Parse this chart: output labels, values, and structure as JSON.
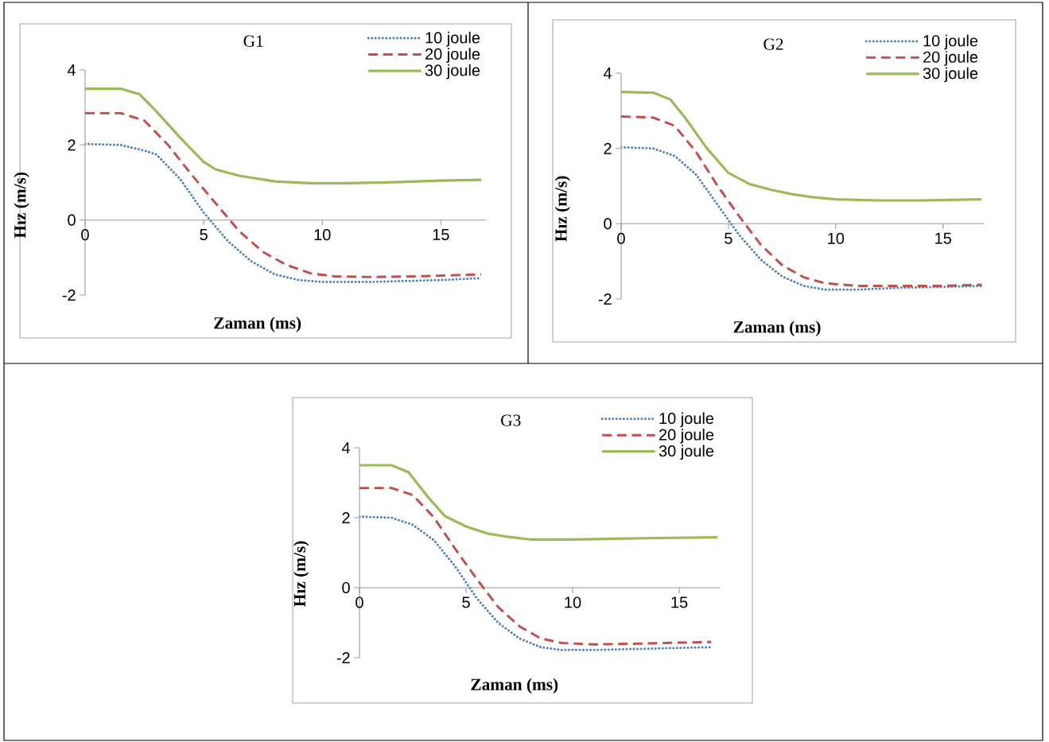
{
  "chart_data": [
    {
      "type": "line",
      "title": "G1",
      "xlabel": "Zaman (ms)",
      "ylabel": "Hız (m/s)",
      "xlim": [
        0,
        16.9
      ],
      "ylim": [
        -2,
        4
      ],
      "xticks": [
        0,
        5,
        10,
        15
      ],
      "yticks": [
        -2,
        0,
        2,
        4
      ],
      "legend": "top right",
      "grid": false,
      "series": [
        {
          "name": "10 joule",
          "color": "#4f81bd",
          "line_style": "dotted",
          "x": [
            0,
            1.5,
            2.5,
            3,
            4,
            5,
            6,
            7,
            8,
            9,
            10,
            12,
            15,
            16.7
          ],
          "values": [
            2.03,
            2.0,
            1.85,
            1.75,
            1.1,
            0.2,
            -0.55,
            -1.1,
            -1.45,
            -1.6,
            -1.65,
            -1.65,
            -1.6,
            -1.55
          ]
        },
        {
          "name": "20 joule",
          "color": "#c0504d",
          "line_style": "dashed",
          "x": [
            0,
            1.5,
            2.5,
            3.5,
            4.5,
            5.5,
            6.5,
            7.5,
            8.5,
            9.5,
            10.5,
            12,
            14,
            16.7
          ],
          "values": [
            2.85,
            2.85,
            2.65,
            2.0,
            1.2,
            0.45,
            -0.3,
            -0.85,
            -1.2,
            -1.42,
            -1.5,
            -1.52,
            -1.5,
            -1.45
          ]
        },
        {
          "name": "30 joule",
          "color": "#9bbb59",
          "line_style": "solid",
          "x": [
            0,
            1.5,
            2.3,
            3,
            4,
            5,
            5.5,
            6.5,
            8,
            9.5,
            11,
            13,
            15,
            16.7
          ],
          "values": [
            3.5,
            3.5,
            3.35,
            2.9,
            2.2,
            1.55,
            1.35,
            1.18,
            1.03,
            0.98,
            0.98,
            1.01,
            1.05,
            1.07
          ]
        }
      ]
    },
    {
      "type": "line",
      "title": "G2",
      "xlabel": "Zaman (ms)",
      "ylabel": "Hız (m/s)",
      "xlim": [
        0,
        16.9
      ],
      "ylim": [
        -2,
        4
      ],
      "xticks": [
        0,
        5,
        10,
        15
      ],
      "yticks": [
        -2,
        0,
        2,
        4
      ],
      "legend": "top right",
      "grid": false,
      "series": [
        {
          "name": "10 joule",
          "color": "#4f81bd",
          "line_style": "dotted",
          "x": [
            0,
            1.5,
            2.5,
            3.5,
            4.5,
            5.5,
            6.5,
            7.5,
            8.5,
            9.5,
            11,
            13,
            15,
            16.8
          ],
          "values": [
            2.03,
            2.0,
            1.8,
            1.3,
            0.5,
            -0.3,
            -0.95,
            -1.4,
            -1.65,
            -1.75,
            -1.75,
            -1.7,
            -1.68,
            -1.65
          ]
        },
        {
          "name": "20 joule",
          "color": "#c0504d",
          "line_style": "dashed",
          "x": [
            0,
            1.5,
            2.5,
            3.5,
            4.5,
            5.5,
            6.5,
            7.5,
            8.5,
            9.5,
            11,
            13,
            15,
            16.8
          ],
          "values": [
            2.85,
            2.82,
            2.6,
            1.9,
            1.0,
            0.2,
            -0.55,
            -1.1,
            -1.42,
            -1.58,
            -1.65,
            -1.65,
            -1.65,
            -1.62
          ]
        },
        {
          "name": "30 joule",
          "color": "#9bbb59",
          "line_style": "solid",
          "x": [
            0,
            1.5,
            2.3,
            3,
            4,
            5,
            6,
            7,
            8,
            9,
            10,
            12,
            14,
            16.8
          ],
          "values": [
            3.5,
            3.48,
            3.3,
            2.8,
            2.0,
            1.35,
            1.05,
            0.9,
            0.78,
            0.7,
            0.65,
            0.62,
            0.62,
            0.65
          ]
        }
      ]
    },
    {
      "type": "line",
      "title": "G3",
      "xlabel": "Zaman (ms)",
      "ylabel": "Hız (m/s)",
      "xlim": [
        0,
        16.9
      ],
      "ylim": [
        -2,
        4
      ],
      "xticks": [
        0,
        5,
        10,
        15
      ],
      "yticks": [
        -2,
        0,
        2,
        4
      ],
      "legend": "top right",
      "grid": false,
      "series": [
        {
          "name": "10 joule",
          "color": "#4f81bd",
          "line_style": "dotted",
          "x": [
            0,
            1.5,
            2.5,
            3.5,
            4.5,
            5.5,
            6.5,
            7.5,
            8.5,
            9.5,
            11,
            13,
            15,
            16.5
          ],
          "values": [
            2.03,
            2.0,
            1.8,
            1.35,
            0.6,
            -0.3,
            -1.0,
            -1.45,
            -1.7,
            -1.78,
            -1.78,
            -1.75,
            -1.72,
            -1.7
          ]
        },
        {
          "name": "20 joule",
          "color": "#c0504d",
          "line_style": "dashed",
          "x": [
            0,
            1.5,
            2.5,
            3.5,
            4.5,
            5.5,
            6.5,
            7.5,
            8.5,
            9.5,
            11,
            13,
            15,
            16.5
          ],
          "values": [
            2.85,
            2.85,
            2.65,
            2.0,
            1.1,
            0.25,
            -0.55,
            -1.1,
            -1.45,
            -1.58,
            -1.62,
            -1.6,
            -1.57,
            -1.55
          ]
        },
        {
          "name": "30 joule",
          "color": "#9bbb59",
          "line_style": "solid",
          "x": [
            0,
            1.5,
            2.3,
            3.2,
            4,
            5,
            6,
            7,
            8,
            10,
            12,
            14,
            16.8
          ],
          "values": [
            3.5,
            3.5,
            3.3,
            2.6,
            2.05,
            1.75,
            1.55,
            1.45,
            1.38,
            1.38,
            1.4,
            1.42,
            1.44
          ]
        }
      ]
    }
  ]
}
